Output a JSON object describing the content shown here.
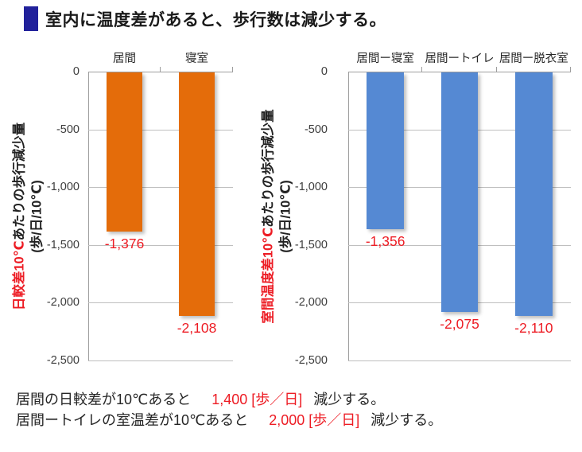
{
  "title": {
    "text": "室内に温度差があると、歩行数は減少する。",
    "marker_color": "#21219b"
  },
  "colors": {
    "bar_orange": "#e46c0a",
    "bar_blue": "#5589d3",
    "highlight_red": "#ed1c24",
    "title_marker_navy": "#21219b"
  },
  "chart_data": [
    {
      "type": "bar",
      "title": "",
      "categories": [
        "居間",
        "寝室"
      ],
      "values": [
        -1376,
        -2108
      ],
      "value_labels": [
        "-1,376",
        "-2,108"
      ],
      "bar_color": "#e46c0a",
      "ylabel_red": "日較差10℃",
      "ylabel_black": "あたりの歩行減少量",
      "ylabel_unit": "(歩/日/10℃)",
      "ylim": [
        -2500,
        0
      ],
      "ytick_values": [
        0,
        -500,
        -1000,
        -1500,
        -2000,
        -2500
      ],
      "ytick_labels": [
        "0",
        "-500",
        "-1,000",
        "-1,500",
        "-2,000",
        "-2,500"
      ],
      "grid": true,
      "legend": "none"
    },
    {
      "type": "bar",
      "title": "",
      "categories": [
        "居間ー寝室",
        "居間ートイレ",
        "居間ー脱衣室"
      ],
      "values": [
        -1356,
        -2075,
        -2110
      ],
      "value_labels": [
        "-1,356",
        "-2,075",
        "-2,110"
      ],
      "bar_color": "#5589d3",
      "ylabel_red": "室間温度差10℃",
      "ylabel_black": "あたりの歩行減少量",
      "ylabel_unit": "(歩/日/10℃)",
      "ylim": [
        -2500,
        0
      ],
      "ytick_values": [
        0,
        -500,
        -1000,
        -1500,
        -2000,
        -2500
      ],
      "ytick_labels": [
        "0",
        "-500",
        "-1,000",
        "-1,500",
        "-2,000",
        "-2,500"
      ],
      "grid": true,
      "legend": "none"
    }
  ],
  "footer": {
    "lines": [
      {
        "pre": "居間の日較差が10℃あると",
        "highlight": "1,400 [歩／日]",
        "post": "減少する。"
      },
      {
        "pre": "居間ートイレの室温差が10℃あると",
        "highlight": "2,000 [歩／日]",
        "post": "減少する。"
      }
    ]
  }
}
